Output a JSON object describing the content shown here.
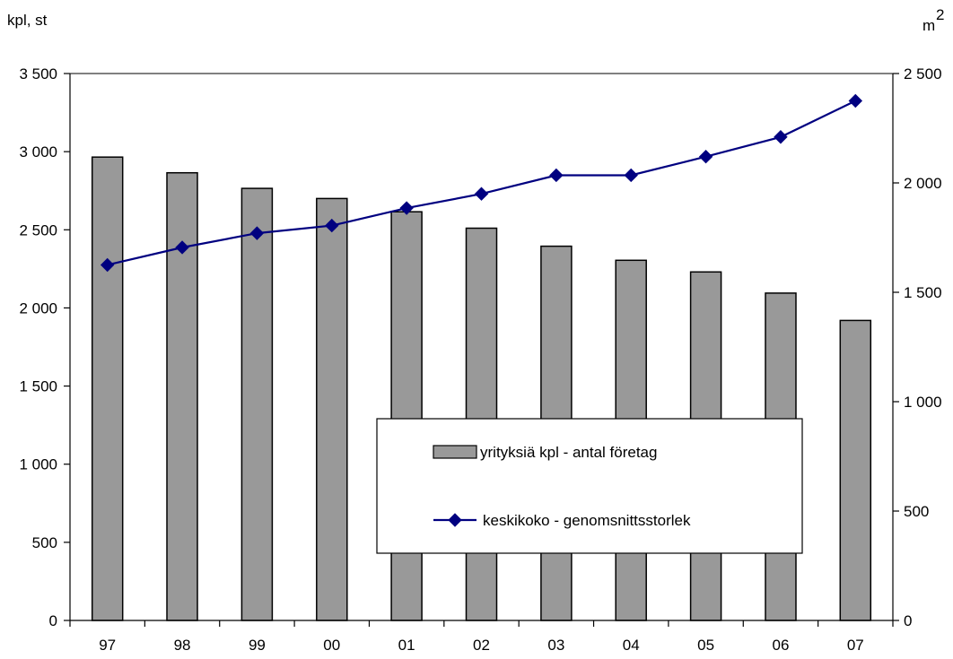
{
  "chart_data": {
    "type": "bar",
    "title": "",
    "xlabel": "",
    "categories": [
      "97",
      "98",
      "99",
      "00",
      "01",
      "02",
      "03",
      "04",
      "05",
      "06",
      "07"
    ],
    "series": [
      {
        "name": "yrityksiä kpl - antal företag",
        "type": "bar",
        "axis": "left",
        "color": "#999999",
        "values": [
          2965,
          2865,
          2765,
          2700,
          2615,
          2510,
          2395,
          2305,
          2230,
          2095,
          1920
        ]
      },
      {
        "name": "keskikoko - genomsnittsstorlek",
        "type": "line",
        "axis": "right",
        "color": "#000080",
        "marker": "diamond",
        "values": [
          1625,
          1705,
          1770,
          1805,
          1885,
          1950,
          2035,
          2035,
          2120,
          2210,
          2375
        ]
      }
    ],
    "y_left": {
      "label": "kpl, st",
      "ylim": [
        0,
        3500
      ],
      "ticks": [
        0,
        500,
        1000,
        1500,
        2000,
        2500,
        3000,
        3500
      ],
      "tick_labels": [
        "0",
        "500",
        "1 000",
        "1 500",
        "2 000",
        "2 500",
        "3 000",
        "3 500"
      ]
    },
    "y_right": {
      "label": "m",
      "label_superscript": "2",
      "ylim": [
        0,
        2500
      ],
      "ticks": [
        0,
        500,
        1000,
        1500,
        2000,
        2500
      ],
      "tick_labels": [
        "0",
        "500",
        "1 000",
        "1 500",
        "2 000",
        "2 500"
      ]
    },
    "grid": false,
    "legend_position": "center-right"
  }
}
